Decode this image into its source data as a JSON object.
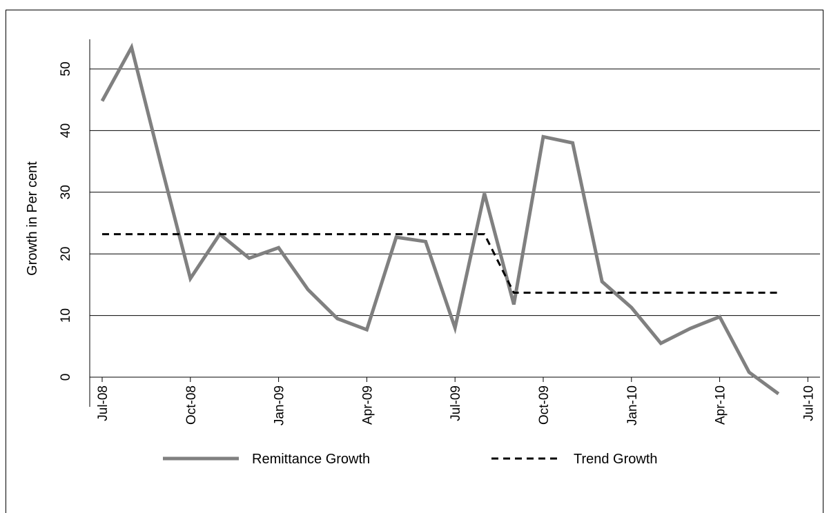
{
  "chart_data": {
    "type": "line",
    "ylabel": "Growth in Per cent",
    "xlabel": "",
    "ylim": [
      0,
      55
    ],
    "yticks": [
      0,
      10,
      20,
      30,
      40,
      50
    ],
    "xlim": [
      "2008-07",
      "2010-07"
    ],
    "xticks": [
      "Jul-08",
      "Oct-08",
      "Jan-09",
      "Apr-09",
      "Jul-09",
      "Oct-09",
      "Jan-10",
      "Apr-10",
      "Jul-10"
    ],
    "grid": "horizontal",
    "legend_position": "bottom",
    "series": [
      {
        "name": "Remittance Growth",
        "color": "#808080",
        "style": "solid",
        "x": [
          "2008-07",
          "2008-08",
          "2008-09",
          "2008-10",
          "2008-11",
          "2008-12",
          "2009-01",
          "2009-02",
          "2009-03",
          "2009-04",
          "2009-05",
          "2009-06",
          "2009-07",
          "2009-08",
          "2009-09",
          "2009-10",
          "2009-11",
          "2009-12",
          "2010-01",
          "2010-02",
          "2010-03",
          "2010-04",
          "2010-05",
          "2010-06"
        ],
        "values": [
          44.8,
          53.5,
          34.5,
          16.0,
          23.2,
          19.3,
          21.0,
          14.2,
          9.5,
          7.7,
          22.7,
          22.0,
          8.0,
          29.8,
          11.8,
          39.0,
          38.0,
          15.5,
          11.3,
          5.5,
          7.9,
          9.8,
          0.8,
          -2.7
        ]
      },
      {
        "name": "Trend Growth",
        "color": "#000000",
        "style": "dashed",
        "x": [
          "2008-07",
          "2009-08",
          "2009-09",
          "2010-06"
        ],
        "values": [
          23.2,
          23.2,
          13.7,
          13.7
        ]
      }
    ]
  }
}
